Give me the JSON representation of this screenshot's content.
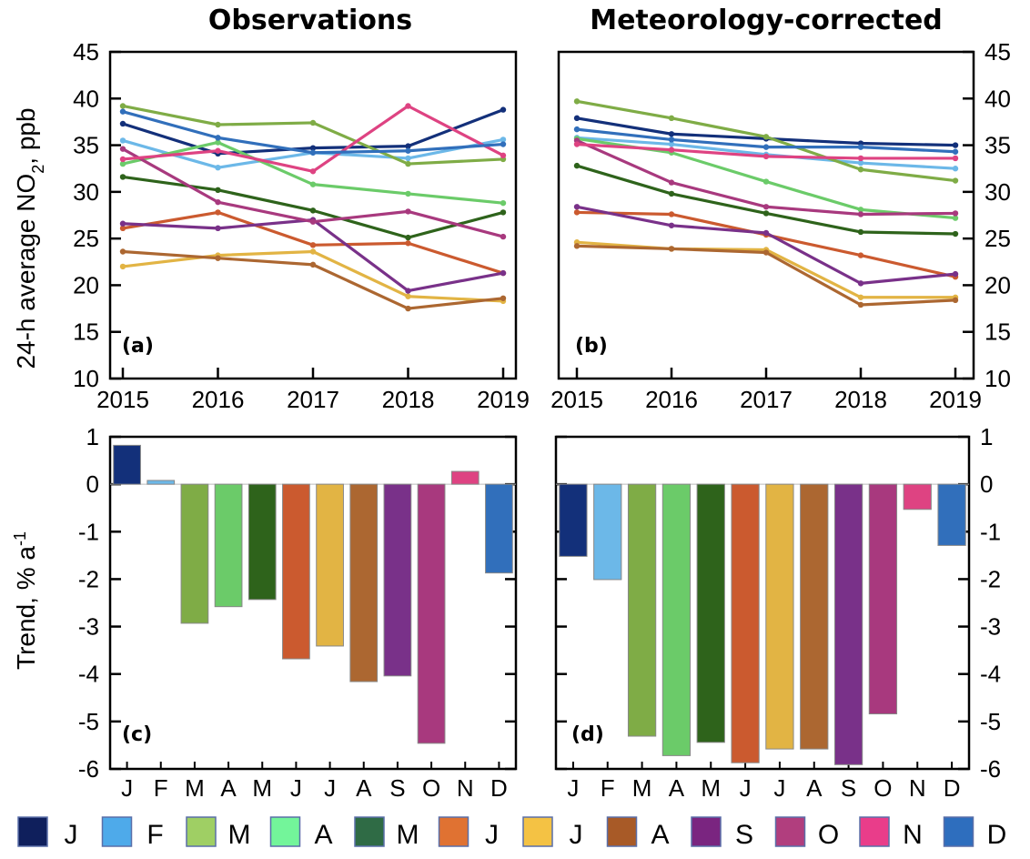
{
  "chart_data": [
    {
      "id": "a",
      "type": "line",
      "title": "Observations",
      "panel_label": "(a)",
      "ylabel": "24-h average NO2, ppb",
      "ylim": [
        10,
        45
      ],
      "yticks": [
        10,
        15,
        20,
        25,
        30,
        35,
        40,
        45
      ],
      "x": [
        2015,
        2016,
        2017,
        2018,
        2019
      ],
      "xtick_labels": [
        "2015",
        "2016",
        "2017",
        "2018",
        "2019"
      ],
      "series": [
        {
          "name": "J",
          "color": "#13307a",
          "values": [
            37.3,
            34.1,
            34.7,
            34.9,
            38.8
          ]
        },
        {
          "name": "F",
          "color": "#6cb8e8",
          "values": [
            35.5,
            32.6,
            34.2,
            33.6,
            35.6
          ]
        },
        {
          "name": "M",
          "color": "#7fac46",
          "values": [
            39.2,
            37.2,
            37.4,
            33.0,
            33.5
          ]
        },
        {
          "name": "A",
          "color": "#6bcb69",
          "values": [
            33.0,
            35.3,
            30.8,
            29.8,
            28.8
          ]
        },
        {
          "name": "M",
          "color": "#2e631b",
          "values": [
            31.6,
            30.2,
            28.0,
            25.1,
            27.8
          ]
        },
        {
          "name": "J",
          "color": "#cb5a2f",
          "values": [
            26.1,
            27.8,
            24.3,
            24.5,
            21.3
          ]
        },
        {
          "name": "J",
          "color": "#e2b444",
          "values": [
            22.0,
            23.2,
            23.6,
            18.8,
            18.3
          ]
        },
        {
          "name": "A",
          "color": "#ac6731",
          "values": [
            23.6,
            22.9,
            22.2,
            17.5,
            18.6
          ]
        },
        {
          "name": "S",
          "color": "#793189",
          "values": [
            26.6,
            26.1,
            27.0,
            19.4,
            21.3
          ]
        },
        {
          "name": "O",
          "color": "#a8397e",
          "values": [
            34.6,
            28.9,
            26.8,
            27.9,
            25.2
          ]
        },
        {
          "name": "N",
          "color": "#de4382",
          "values": [
            33.5,
            34.4,
            32.2,
            39.2,
            33.9
          ]
        },
        {
          "name": "D",
          "color": "#316fbb",
          "values": [
            38.6,
            35.8,
            34.2,
            34.4,
            35.1
          ]
        }
      ]
    },
    {
      "id": "b",
      "type": "line",
      "title": "Meteorology-corrected",
      "panel_label": "(b)",
      "ylabel": "",
      "ylim": [
        10,
        45
      ],
      "yticks": [
        10,
        15,
        20,
        25,
        30,
        35,
        40,
        45
      ],
      "x": [
        2015,
        2016,
        2017,
        2018,
        2019
      ],
      "xtick_labels": [
        "2015",
        "2016",
        "2017",
        "2018",
        "2019"
      ],
      "series": [
        {
          "name": "J",
          "color": "#13307a",
          "values": [
            37.9,
            36.2,
            35.7,
            35.2,
            35.0
          ]
        },
        {
          "name": "F",
          "color": "#6cb8e8",
          "values": [
            35.8,
            35.1,
            34.0,
            33.1,
            32.5
          ]
        },
        {
          "name": "M",
          "color": "#7fac46",
          "values": [
            39.7,
            37.9,
            35.9,
            32.4,
            31.2
          ]
        },
        {
          "name": "A",
          "color": "#6bcb69",
          "values": [
            35.7,
            34.2,
            31.1,
            28.1,
            27.2
          ]
        },
        {
          "name": "M",
          "color": "#2e631b",
          "values": [
            32.8,
            29.8,
            27.7,
            25.7,
            25.5
          ]
        },
        {
          "name": "J",
          "color": "#cb5a2f",
          "values": [
            27.8,
            27.6,
            25.4,
            23.2,
            20.9
          ]
        },
        {
          "name": "J",
          "color": "#e2b444",
          "values": [
            24.6,
            23.9,
            23.8,
            18.7,
            18.7
          ]
        },
        {
          "name": "A",
          "color": "#ac6731",
          "values": [
            24.2,
            23.9,
            23.5,
            17.9,
            18.4
          ]
        },
        {
          "name": "S",
          "color": "#793189",
          "values": [
            28.4,
            26.4,
            25.6,
            20.2,
            21.2
          ]
        },
        {
          "name": "O",
          "color": "#a8397e",
          "values": [
            35.5,
            31.0,
            28.4,
            27.6,
            27.7
          ]
        },
        {
          "name": "N",
          "color": "#de4382",
          "values": [
            35.1,
            34.5,
            33.8,
            33.6,
            33.6
          ]
        },
        {
          "name": "D",
          "color": "#316fbb",
          "values": [
            36.7,
            35.6,
            34.8,
            34.8,
            34.3
          ]
        }
      ]
    },
    {
      "id": "c",
      "type": "bar",
      "title": "",
      "panel_label": "(c)",
      "ylabel": "Trend, % a-1",
      "ylim": [
        -6,
        1
      ],
      "yticks": [
        -6,
        -5,
        -4,
        -3,
        -2,
        -1,
        0,
        1
      ],
      "categories": [
        "J",
        "F",
        "M",
        "A",
        "M",
        "J",
        "J",
        "A",
        "S",
        "O",
        "N",
        "D"
      ],
      "values": [
        0.82,
        0.08,
        -2.93,
        -2.58,
        -2.43,
        -3.68,
        -3.41,
        -4.16,
        -4.04,
        -5.46,
        0.27,
        -1.87
      ],
      "colors": [
        "#13307a",
        "#6cb8e8",
        "#7fac46",
        "#6bcb69",
        "#2e631b",
        "#cb5a2f",
        "#e2b444",
        "#ac6731",
        "#793189",
        "#a8397e",
        "#de4382",
        "#316fbb"
      ]
    },
    {
      "id": "d",
      "type": "bar",
      "title": "",
      "panel_label": "(d)",
      "ylabel": "",
      "ylim": [
        -6,
        1
      ],
      "yticks": [
        -6,
        -5,
        -4,
        -3,
        -2,
        -1,
        0,
        1
      ],
      "categories": [
        "J",
        "F",
        "M",
        "A",
        "M",
        "J",
        "J",
        "A",
        "S",
        "O",
        "N",
        "D"
      ],
      "values": [
        -1.52,
        -2.01,
        -5.31,
        -5.72,
        -5.44,
        -5.87,
        -5.58,
        -5.58,
        -5.91,
        -4.84,
        -0.53,
        -1.29
      ],
      "colors": [
        "#13307a",
        "#6cb8e8",
        "#7fac46",
        "#6bcb69",
        "#2e631b",
        "#cb5a2f",
        "#e2b444",
        "#ac6731",
        "#793189",
        "#a8397e",
        "#de4382",
        "#316fbb"
      ]
    }
  ],
  "legend": {
    "position": "bottom",
    "items": [
      {
        "label": "J",
        "color": "#0f1f5c"
      },
      {
        "label": "F",
        "color": "#4eaaea"
      },
      {
        "label": "M",
        "color": "#9fcf64"
      },
      {
        "label": "A",
        "color": "#73f59a"
      },
      {
        "label": "M",
        "color": "#2f6b45"
      },
      {
        "label": "J",
        "color": "#e07232"
      },
      {
        "label": "J",
        "color": "#f4c244"
      },
      {
        "label": "A",
        "color": "#a85a27"
      },
      {
        "label": "S",
        "color": "#7a2580"
      },
      {
        "label": "O",
        "color": "#b13e7e"
      },
      {
        "label": "N",
        "color": "#e93d8a"
      },
      {
        "label": "D",
        "color": "#2e6ebe"
      }
    ]
  },
  "labels": {
    "title_left": "Observations",
    "title_right": "Meteorology-corrected",
    "ylabel_top_main": "24-h average NO",
    "ylabel_top_sub": "2",
    "ylabel_top_tail": ", ppb",
    "ylabel_bottom_main": "Trend, % a",
    "ylabel_bottom_sup": "-1"
  }
}
